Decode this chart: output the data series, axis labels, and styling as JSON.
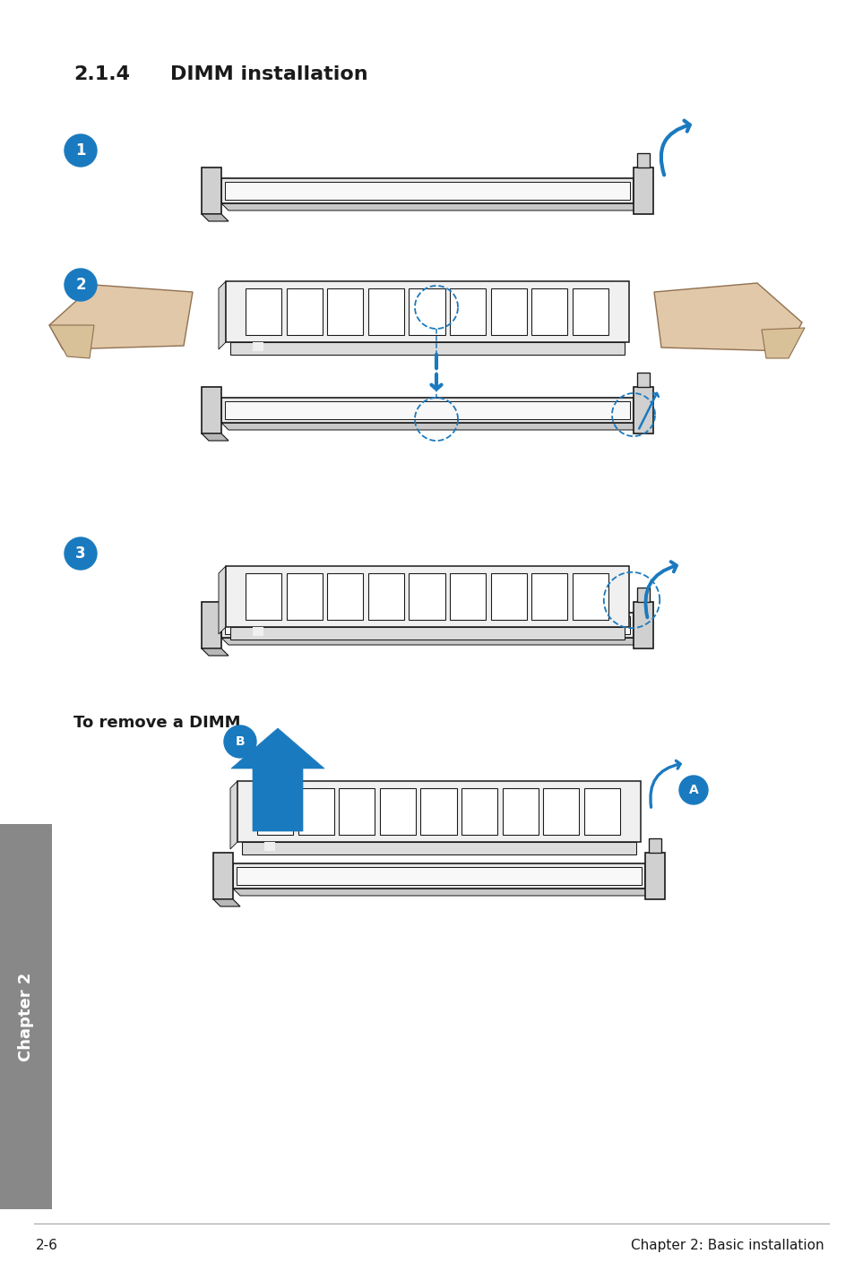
{
  "title_prefix": "2.1.4",
  "title_main": "DIMM installation",
  "title_fontsize": 16,
  "subtitle": "To remove a DIMM",
  "subtitle_fontsize": 13,
  "footer_left": "2-6",
  "footer_right": "Chapter 2: Basic installation",
  "footer_fontsize": 11,
  "bg_color": "#ffffff",
  "blue_color": "#1a7abf",
  "gray_sidebar_color": "#888888",
  "page_width": 9.54,
  "page_height": 14.38
}
